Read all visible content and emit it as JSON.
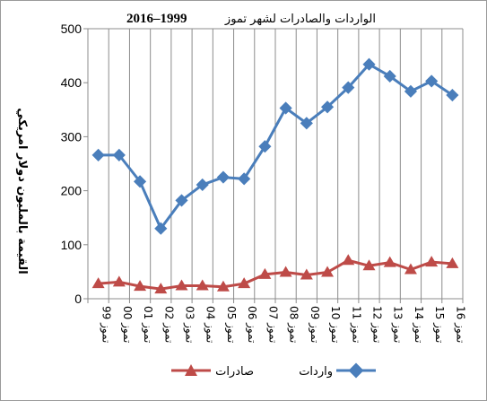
{
  "chart_data": {
    "type": "line",
    "title": "الواردات والصادرات لشهر تموز",
    "title_years": "2016–1999",
    "ylabel": "القيمة بالمليون دولار امريكي",
    "xlabel": "",
    "ylim": [
      0,
      500
    ],
    "y_ticks": [
      "0",
      "100",
      "200",
      "300",
      "400",
      "500"
    ],
    "grid": "vertical",
    "legend_position": "bottom",
    "categories": [
      "تموز 99",
      "تموز 00",
      "تموز 01",
      "تموز 02",
      "تموز 03",
      "تموز 04",
      "تموز 05",
      "تموز 06",
      "تموز 07",
      "تموز 08",
      "تموز 09",
      "تموز 10",
      "تموز 11",
      "تموز 12",
      "تموز 13",
      "تموز 14",
      "تموز 15",
      "تموز 16"
    ],
    "series": [
      {
        "name": "واردات",
        "color": "#4a7ebb",
        "marker": "diamond",
        "values": [
          266,
          266,
          217,
          130,
          182,
          211,
          225,
          222,
          282,
          353,
          325,
          355,
          391,
          434,
          412,
          384,
          403,
          377
        ]
      },
      {
        "name": "صادرات",
        "color": "#be4b48",
        "marker": "triangle",
        "values": [
          28,
          31,
          23,
          18,
          24,
          24,
          22,
          28,
          45,
          49,
          44,
          49,
          71,
          61,
          67,
          54,
          68,
          65
        ]
      }
    ]
  }
}
